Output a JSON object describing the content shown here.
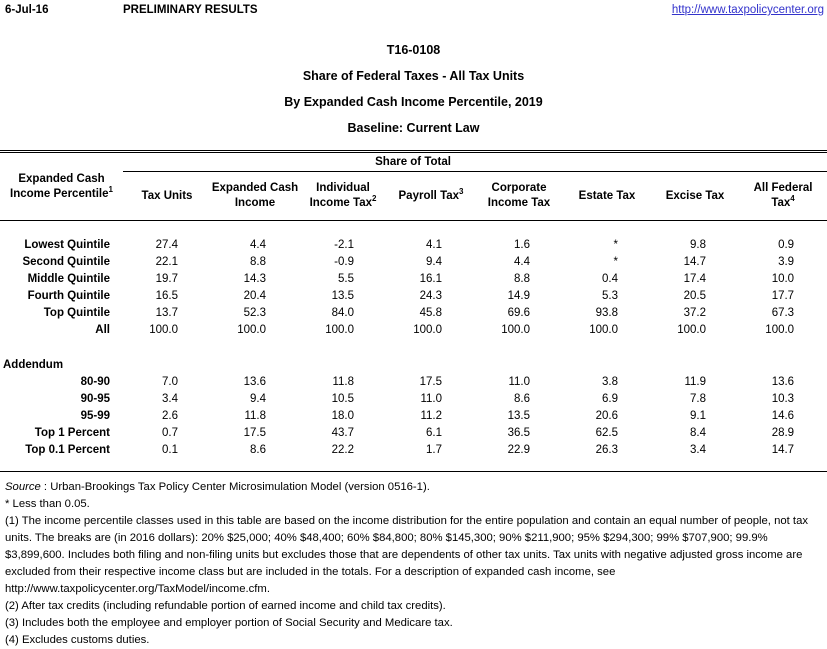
{
  "page_header": {
    "date": "6-Jul-16",
    "status": "PRELIMINARY RESULTS",
    "link": "http://www.taxpolicycenter.org"
  },
  "title": {
    "table_id": "T16-0108",
    "line1": "Share of Federal Taxes - All Tax Units",
    "line2": "By Expanded Cash Income Percentile, 2019",
    "line3": "Baseline: Current Law"
  },
  "table": {
    "span_header": "Share of Total",
    "row_header": {
      "line1": "Expanded Cash",
      "sup1": "",
      "line2": "Income Percentile",
      "sup2": "1"
    },
    "columns": [
      {
        "line1": "Tax Units",
        "sup1": "",
        "line2": "",
        "sup2": ""
      },
      {
        "line1": "Expanded Cash",
        "sup1": "",
        "line2": "Income",
        "sup2": ""
      },
      {
        "line1": "Individual",
        "sup1": "",
        "line2": "Income Tax",
        "sup2": "2"
      },
      {
        "line1": "Payroll Tax",
        "sup1": "3",
        "line2": "",
        "sup2": ""
      },
      {
        "line1": "Corporate",
        "sup1": "",
        "line2": "Income Tax",
        "sup2": ""
      },
      {
        "line1": "Estate Tax",
        "sup1": "",
        "line2": "",
        "sup2": ""
      },
      {
        "line1": "Excise Tax",
        "sup1": "",
        "line2": "",
        "sup2": ""
      },
      {
        "line1": "All Federal",
        "sup1": "",
        "line2": "Tax",
        "sup2": "4"
      }
    ],
    "rows": [
      {
        "label": "Lowest Quintile",
        "values": [
          "27.4",
          "4.4",
          "-2.1",
          "4.1",
          "1.6",
          "*",
          "9.8",
          "0.9"
        ]
      },
      {
        "label": "Second Quintile",
        "values": [
          "22.1",
          "8.8",
          "-0.9",
          "9.4",
          "4.4",
          "*",
          "14.7",
          "3.9"
        ]
      },
      {
        "label": "Middle Quintile",
        "values": [
          "19.7",
          "14.3",
          "5.5",
          "16.1",
          "8.8",
          "0.4",
          "17.4",
          "10.0"
        ]
      },
      {
        "label": "Fourth Quintile",
        "values": [
          "16.5",
          "20.4",
          "13.5",
          "24.3",
          "14.9",
          "5.3",
          "20.5",
          "17.7"
        ]
      },
      {
        "label": "Top Quintile",
        "values": [
          "13.7",
          "52.3",
          "84.0",
          "45.8",
          "69.6",
          "93.8",
          "37.2",
          "67.3"
        ]
      },
      {
        "label": "All",
        "values": [
          "100.0",
          "100.0",
          "100.0",
          "100.0",
          "100.0",
          "100.0",
          "100.0",
          "100.0"
        ]
      }
    ],
    "addendum_label": "Addendum",
    "addendum_rows": [
      {
        "label": "80-90",
        "values": [
          "7.0",
          "13.6",
          "11.8",
          "17.5",
          "11.0",
          "3.8",
          "11.9",
          "13.6"
        ]
      },
      {
        "label": "90-95",
        "values": [
          "3.4",
          "9.4",
          "10.5",
          "11.0",
          "8.6",
          "6.9",
          "7.8",
          "10.3"
        ]
      },
      {
        "label": "95-99",
        "values": [
          "2.6",
          "11.8",
          "18.0",
          "11.2",
          "13.5",
          "20.6",
          "9.1",
          "14.6"
        ]
      },
      {
        "label": "Top 1 Percent",
        "values": [
          "0.7",
          "17.5",
          "43.7",
          "6.1",
          "36.5",
          "62.5",
          "8.4",
          "28.9"
        ]
      },
      {
        "label": "Top 0.1 Percent",
        "values": [
          "0.1",
          "8.6",
          "22.2",
          "1.7",
          "22.9",
          "26.3",
          "3.4",
          "14.7"
        ]
      }
    ]
  },
  "footnotes": {
    "source_label": "Source",
    "source_text": " : Urban-Brookings Tax Policy Center Microsimulation Model (version 0516-1).",
    "star_note": "* Less than 0.05.",
    "note1": "(1) The income percentile classes used in this table are based on the income distribution for the entire population and contain an equal number of people, not tax units. The breaks are (in 2016 dollars): 20% $25,000; 40% $48,400; 60% $84,800; 80% $145,300; 90% $211,900; 95% $294,300; 99% $707,900; 99.9% $3,899,600. Includes both filing and non-filing units but excludes those that are dependents of other tax units. Tax units with negative adjusted gross income are excluded from their respective income class but are included in the totals. For a description of expanded cash income, see http://www.taxpolicycenter.org/TaxModel/income.cfm.",
    "note2": "(2) After tax credits (including refundable portion of earned income and child tax credits).",
    "note3": "(3) Includes both the employee and employer portion of Social Security and Medicare tax.",
    "note4": "(4) Excludes customs duties."
  }
}
